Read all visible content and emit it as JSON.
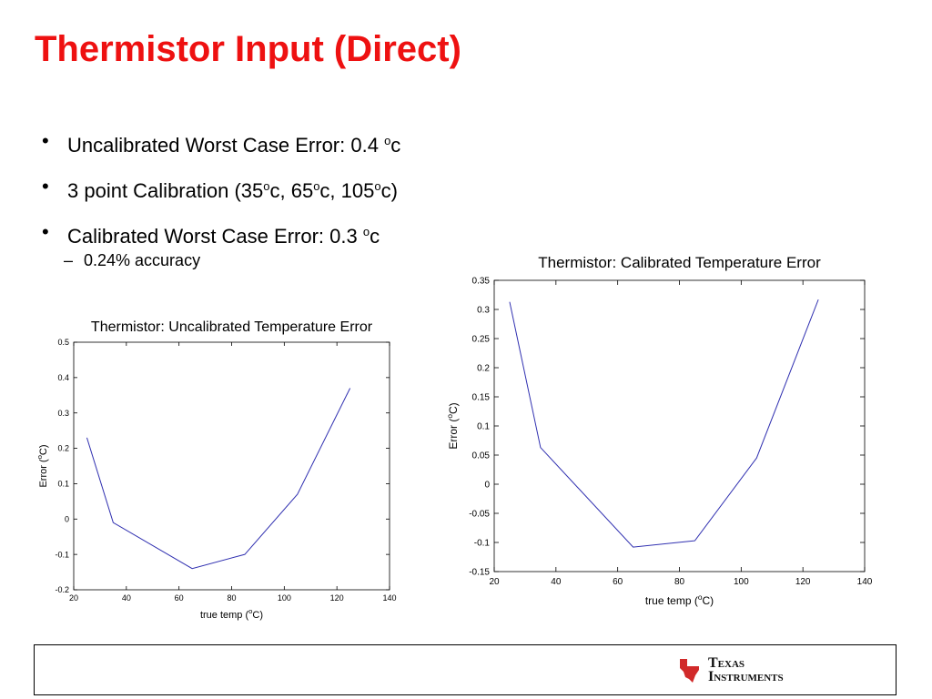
{
  "slide": {
    "title": "Thermistor Input (Direct)",
    "bullets": [
      {
        "pre": "Uncalibrated Worst Case Error: 0.4 ",
        "sup": "o",
        "post": "c"
      },
      {
        "pre": "3 point Calibration (35",
        "sup1": "o",
        "mid1": "c, 65",
        "sup2": "o",
        "mid2": "c, 105",
        "sup3": "o",
        "post": "c)"
      },
      {
        "pre": "Calibrated Worst Case Error: 0.3 ",
        "sup": "o",
        "post": "c"
      }
    ],
    "sub_bullet": {
      "dash": "–",
      "text": "0.24% accuracy"
    }
  },
  "footer": {
    "logo": {
      "line1_big": "T",
      "line1_rest": "EXAS",
      "line2_big": "I",
      "line2_rest": "NSTRUMENTS"
    },
    "accent_color": "#d12a2a"
  },
  "colors": {
    "title": "#ee1111",
    "line": "#2f2fb0"
  },
  "chart_data": [
    {
      "type": "line",
      "title": "Thermistor: Uncalibrated Temperature Error",
      "xlabel": "true temp (",
      "xlabel_sup": "o",
      "xlabel_post": "C)",
      "ylabel": "Error (",
      "ylabel_sup": "o",
      "ylabel_post": "C)",
      "x": [
        25,
        35,
        65,
        85,
        105,
        125
      ],
      "series": [
        {
          "values": [
            0.23,
            -0.01,
            -0.14,
            -0.1,
            0.07,
            0.37
          ]
        }
      ],
      "xlim": [
        20,
        140
      ],
      "ylim": [
        -0.2,
        0.5
      ],
      "xticks": [
        "20",
        "40",
        "60",
        "80",
        "100",
        "120",
        "140"
      ],
      "yticks": [
        "-0.2",
        "-0.1",
        "0",
        "0.1",
        "0.2",
        "0.3",
        "0.4",
        "0.5"
      ],
      "grid": false
    },
    {
      "type": "line",
      "title": "Thermistor: Calibrated Temperature Error",
      "xlabel": "true temp (",
      "xlabel_sup": "o",
      "xlabel_post": "C)",
      "ylabel": "Error (",
      "ylabel_sup": "o",
      "ylabel_post": "C)",
      "x": [
        25,
        35,
        65,
        85,
        105,
        125
      ],
      "series": [
        {
          "values": [
            0.313,
            0.063,
            -0.108,
            -0.097,
            0.045,
            0.317
          ]
        }
      ],
      "xlim": [
        20,
        140
      ],
      "ylim": [
        -0.15,
        0.35
      ],
      "xticks": [
        "20",
        "40",
        "60",
        "80",
        "100",
        "120",
        "140"
      ],
      "yticks": [
        "-0.15",
        "-0.1",
        "-0.05",
        "0",
        "0.05",
        "0.1",
        "0.15",
        "0.2",
        "0.25",
        "0.3",
        "0.35"
      ],
      "grid": false
    }
  ]
}
